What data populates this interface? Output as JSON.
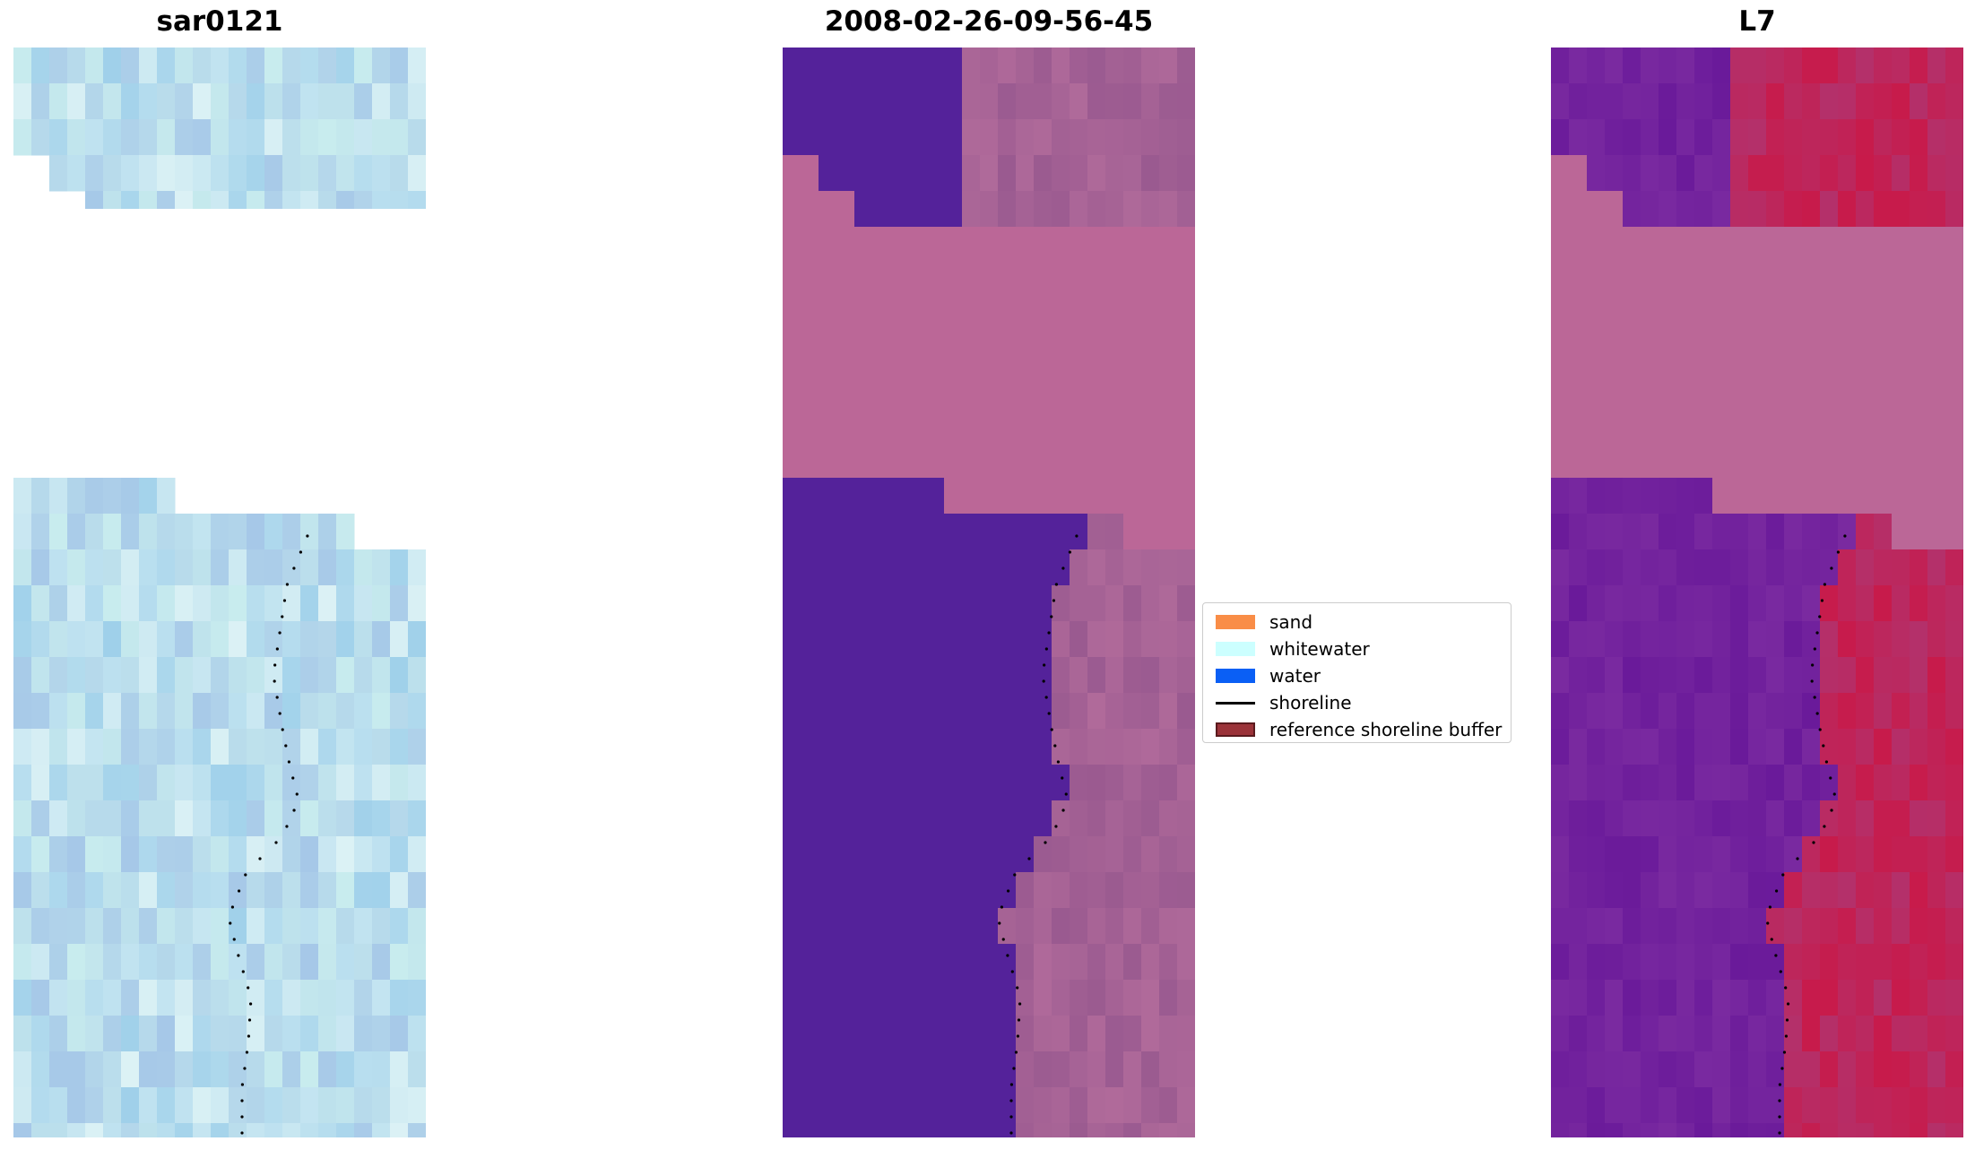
{
  "panels": [
    {
      "title": "sar0121"
    },
    {
      "title": "2008-02-26-09-56-45"
    },
    {
      "title": "L7"
    }
  ],
  "legend": {
    "items": [
      {
        "label": "sand",
        "color": "#f98d47",
        "kind": "patch"
      },
      {
        "label": "whitewater",
        "color": "#ccffff",
        "kind": "patch"
      },
      {
        "label": "water",
        "color": "#0a5ff5",
        "kind": "patch"
      },
      {
        "label": "shoreline",
        "color": "#000000",
        "kind": "line"
      },
      {
        "label": "reference shoreline buffer",
        "color": "#9b3339",
        "kind": "patch-border"
      }
    ]
  },
  "colors": {
    "nodata": "#bb6797",
    "water_class": "#54229a",
    "sar_base": "#a9cde4",
    "l7_water": "#6c1a9a",
    "l7_land": "#c22458"
  }
}
